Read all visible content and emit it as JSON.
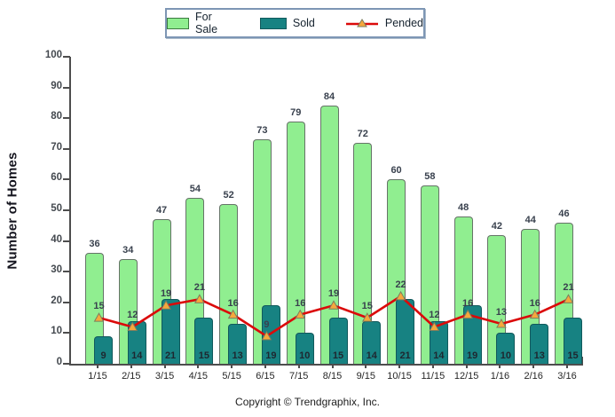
{
  "chart_data": {
    "type": "bar",
    "title": "",
    "categories": [
      "1/15",
      "2/15",
      "3/15",
      "4/15",
      "5/15",
      "6/15",
      "7/15",
      "8/15",
      "9/15",
      "10/15",
      "11/15",
      "12/15",
      "1/16",
      "2/16",
      "3/16"
    ],
    "series": [
      {
        "name": "For Sale",
        "type": "bar",
        "color": "#90EE90",
        "border_color": "#667468",
        "values": [
          36,
          34,
          47,
          54,
          52,
          73,
          79,
          84,
          72,
          60,
          58,
          48,
          42,
          44,
          46
        ]
      },
      {
        "name": "Sold",
        "type": "bar",
        "color": "#178282",
        "border_color": "#11595c",
        "values": [
          9,
          14,
          21,
          15,
          13,
          19,
          10,
          15,
          14,
          21,
          14,
          19,
          10,
          13,
          15
        ]
      },
      {
        "name": "Pended",
        "type": "line",
        "color": "#DB0A0A",
        "marker": "triangle-up",
        "marker_color": "#F6A83C",
        "marker_border_color": "#7e7e5e",
        "values": [
          15,
          12,
          19,
          21,
          16,
          9,
          16,
          19,
          15,
          22,
          12,
          16,
          13,
          16,
          21
        ]
      }
    ],
    "xlabel": "",
    "ylabel": "Number of Homes",
    "ylim": [
      0,
      100
    ],
    "ytick_step": 10,
    "grid": false,
    "legend_position": "top-center",
    "value_labels": true,
    "axis_color": "#4d4d4d",
    "value_label_color": "#39414e"
  },
  "footer": {
    "copyright": "Copyright © Trendgraphix, Inc."
  }
}
